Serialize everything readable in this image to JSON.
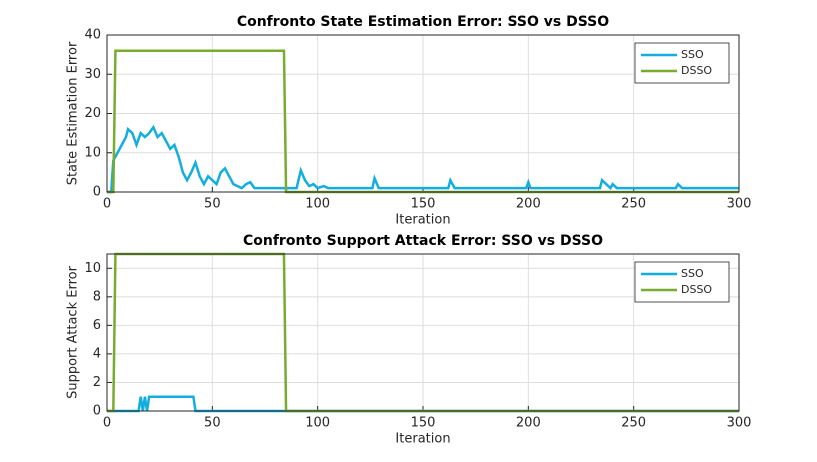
{
  "chart_data": [
    {
      "type": "line",
      "title": "Confronto State Estimation Error: SSO vs DSSO",
      "xlabel": "Iteration",
      "ylabel": "State Estimation Error",
      "x": [
        0,
        2,
        3,
        4,
        5,
        7,
        9,
        10,
        12,
        14,
        16,
        18,
        20,
        22,
        24,
        26,
        28,
        30,
        32,
        34,
        36,
        38,
        40,
        42,
        44,
        46,
        48,
        50,
        52,
        54,
        56,
        58,
        60,
        62,
        64,
        66,
        68,
        70,
        84,
        85,
        90,
        92,
        94,
        96,
        98,
        100,
        103,
        105,
        126,
        127,
        129,
        162,
        163,
        165,
        199,
        200,
        201,
        234,
        235,
        237,
        239,
        240,
        242,
        270,
        271,
        273,
        300
      ],
      "series": [
        {
          "name": "SSO",
          "color": "#12aee0",
          "values": [
            0,
            0,
            8,
            9,
            10,
            12,
            14,
            16,
            15,
            12,
            15,
            14,
            15,
            16.5,
            14,
            15,
            13,
            11,
            12,
            9,
            5,
            3,
            5,
            7.5,
            4,
            2,
            4,
            3,
            2,
            5,
            6,
            4,
            2,
            1.5,
            1,
            2,
            2.5,
            1,
            1,
            1,
            1,
            5.5,
            3,
            1.5,
            2,
            1,
            1.5,
            1,
            1,
            3.5,
            1,
            1,
            3,
            1,
            1,
            2.5,
            1,
            1,
            3,
            2,
            1,
            2,
            1,
            1,
            2,
            1,
            1
          ]
        },
        {
          "name": "DSSO",
          "color": "#77ac30",
          "values": [
            0,
            0,
            0,
            36,
            36,
            36,
            36,
            36,
            36,
            36,
            36,
            36,
            36,
            36,
            36,
            36,
            36,
            36,
            36,
            36,
            36,
            36,
            36,
            36,
            36,
            36,
            36,
            36,
            36,
            36,
            36,
            36,
            36,
            36,
            36,
            36,
            36,
            36,
            36,
            0,
            0,
            0,
            0,
            0,
            0,
            0,
            0,
            0,
            0,
            0,
            0,
            0,
            0,
            0,
            0,
            0,
            0,
            0,
            0,
            0,
            0,
            0,
            0,
            0,
            0,
            0,
            0
          ]
        }
      ],
      "xlim": [
        0,
        300
      ],
      "xticks": [
        0,
        50,
        100,
        150,
        200,
        250,
        300
      ],
      "ylim": [
        0,
        40
      ],
      "yticks": [
        0,
        10,
        20,
        30,
        40
      ],
      "grid": true,
      "legend": "northeast"
    },
    {
      "type": "line",
      "title": "Confronto Support Attack Error: SSO vs DSSO",
      "xlabel": "Iteration",
      "ylabel": "Support Attack Error",
      "x": [
        0,
        3,
        4,
        15,
        16,
        17,
        18,
        19,
        20,
        41,
        42,
        84,
        85,
        300
      ],
      "series": [
        {
          "name": "SSO",
          "color": "#12aee0",
          "values": [
            0,
            0,
            0,
            0,
            1,
            0,
            1,
            0,
            1,
            1,
            0,
            0,
            0,
            0
          ]
        },
        {
          "name": "DSSO",
          "color": "#77ac30",
          "values": [
            0,
            0,
            11,
            11,
            11,
            11,
            11,
            11,
            11,
            11,
            11,
            11,
            0,
            0
          ]
        }
      ],
      "xlim": [
        0,
        300
      ],
      "xticks": [
        0,
        50,
        100,
        150,
        200,
        250,
        300
      ],
      "ylim": [
        0,
        11
      ],
      "yticks": [
        0,
        2,
        4,
        6,
        8,
        10
      ],
      "grid": true,
      "legend": "northeast"
    }
  ]
}
